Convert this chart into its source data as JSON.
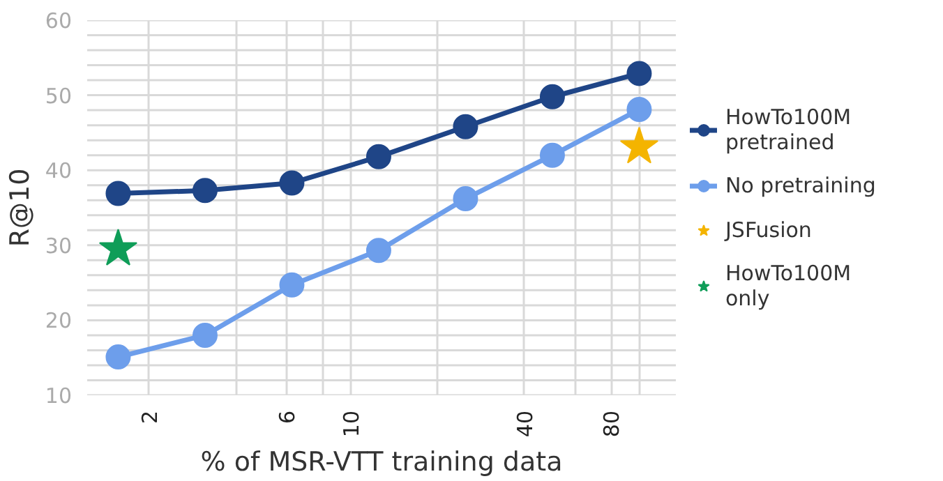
{
  "chart_data": {
    "type": "line",
    "xlabel": "% of MSR-VTT training data",
    "ylabel": "R@10",
    "log": "x",
    "x": [
      1.5625,
      3.125,
      6.25,
      12.5,
      25,
      50,
      100
    ],
    "series": [
      {
        "name": "HowTo100M\npretrained",
        "color": "#1f4587",
        "values": [
          36.9,
          37.3,
          38.3,
          41.8,
          45.8,
          49.8,
          52.9
        ],
        "marker": "circle"
      },
      {
        "name": "No pretraining",
        "color": "#6d9eeb",
        "values": [
          15.1,
          18.0,
          24.7,
          29.3,
          36.2,
          42.0,
          48.1
        ],
        "marker": "circle"
      },
      {
        "name": "JSFusion",
        "type": "scatter",
        "marker": "star",
        "color": "#f4b400",
        "x": [
          100
        ],
        "values": [
          43.1
        ]
      },
      {
        "name": "HowTo100M\nonly",
        "type": "scatter",
        "marker": "star",
        "color": "#0f9d58",
        "x": [
          1.5625
        ],
        "values": [
          29.5
        ]
      }
    ],
    "xlim": [
      1.22,
      134
    ],
    "ylim": [
      10,
      60
    ],
    "xticks": [
      2,
      {
        "value": 4,
        "label": null
      },
      6,
      {
        "value": 8,
        "label": null
      },
      10,
      {
        "value": 20,
        "label": null
      },
      40,
      {
        "value": 60,
        "label": null
      },
      80,
      {
        "value": 100,
        "label": null
      }
    ],
    "yticks": [
      10,
      {
        "value": 12,
        "label": null
      },
      {
        "value": 14,
        "label": null
      },
      {
        "value": 16,
        "label": null
      },
      {
        "value": 18,
        "label": null
      },
      20,
      {
        "value": 22,
        "label": null
      },
      {
        "value": 24,
        "label": null
      },
      {
        "value": 26,
        "label": null
      },
      {
        "value": 28,
        "label": null
      },
      30,
      {
        "value": 32,
        "label": null
      },
      {
        "value": 34,
        "label": null
      },
      {
        "value": 36,
        "label": null
      },
      {
        "value": 38,
        "label": null
      },
      40,
      {
        "value": 42,
        "label": null
      },
      {
        "value": 44,
        "label": null
      },
      {
        "value": 46,
        "label": null
      },
      {
        "value": 48,
        "label": null
      },
      50,
      {
        "value": 52,
        "label": null
      },
      {
        "value": 54,
        "label": null
      },
      {
        "value": 56,
        "label": null
      },
      {
        "value": 58,
        "label": null
      },
      60
    ],
    "grid": true,
    "legend": "right"
  }
}
